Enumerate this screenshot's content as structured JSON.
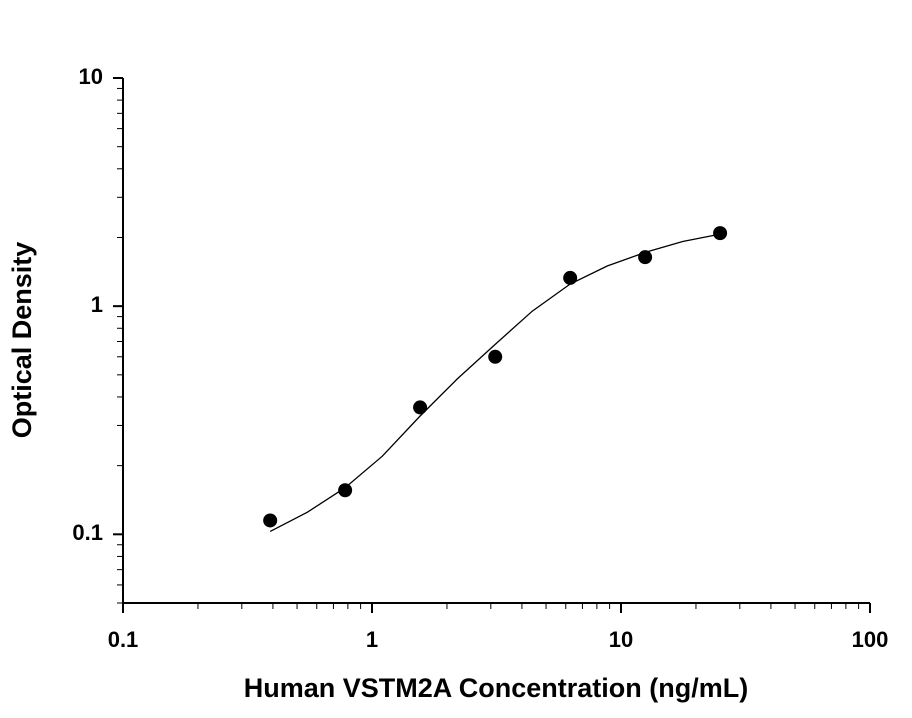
{
  "chart_data": {
    "type": "scatter",
    "x_label": "Human VSTM2A Concentration (ng/mL)",
    "y_label": "Optical Density",
    "xscale": "log",
    "yscale": "log",
    "xlim": [
      0.1,
      100
    ],
    "xticks": [
      0.1,
      1,
      10,
      100
    ],
    "ylim": [
      0.05,
      10
    ],
    "yticks": [
      0.1,
      1,
      10
    ],
    "minor_ticks": true,
    "series": [
      {
        "style": "marker",
        "color": "#000000",
        "x": [
          0.39,
          0.78,
          1.56,
          3.125,
          6.25,
          12.5,
          25
        ],
        "values": [
          0.115,
          0.156,
          0.36,
          0.6,
          1.33,
          1.64,
          2.09
        ]
      },
      {
        "style": "line",
        "color": "#000000",
        "x": [
          0.39,
          0.55,
          0.78,
          1.1,
          1.56,
          2.2,
          3.125,
          4.4,
          6.25,
          8.8,
          12.5,
          17.7,
          25
        ],
        "values": [
          0.103,
          0.125,
          0.16,
          0.22,
          0.33,
          0.48,
          0.68,
          0.95,
          1.25,
          1.5,
          1.72,
          1.92,
          2.07
        ]
      }
    ]
  }
}
